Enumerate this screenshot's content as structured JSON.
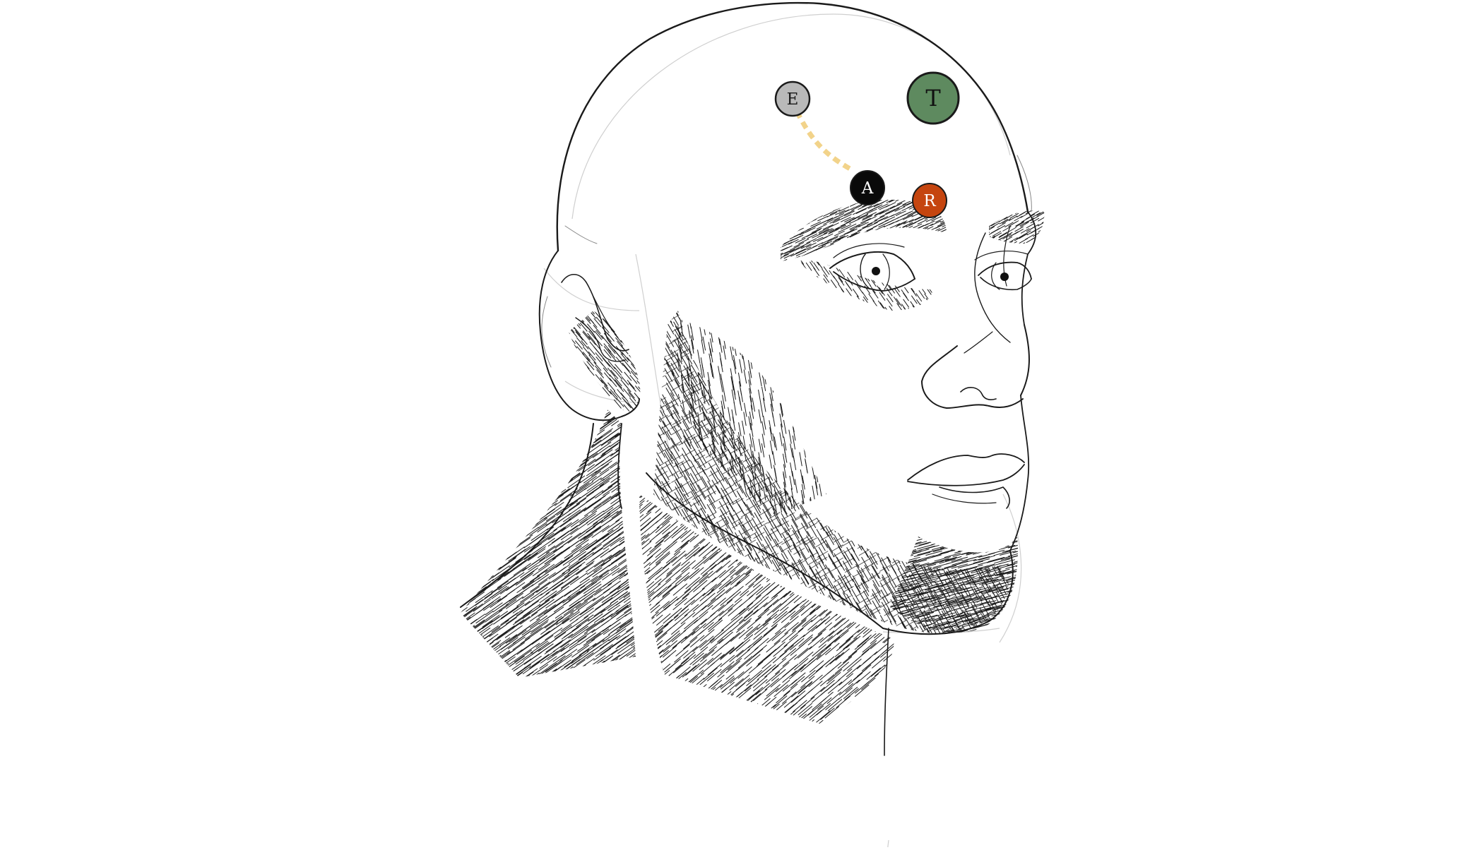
{
  "figure": {
    "subject": "head-sketch",
    "marker_colors": {
      "E": "#b9b9b9",
      "T": "#5e8a5f",
      "A": "#0a0a0a",
      "R": "#c5450f",
      "path": "#f2d38a"
    }
  },
  "markers": [
    {
      "id": "E",
      "label": "E"
    },
    {
      "id": "T",
      "label": "T"
    },
    {
      "id": "A",
      "label": "A"
    },
    {
      "id": "R",
      "label": "R"
    }
  ],
  "connection": {
    "from": "E",
    "to": "A",
    "style": "dashed"
  }
}
